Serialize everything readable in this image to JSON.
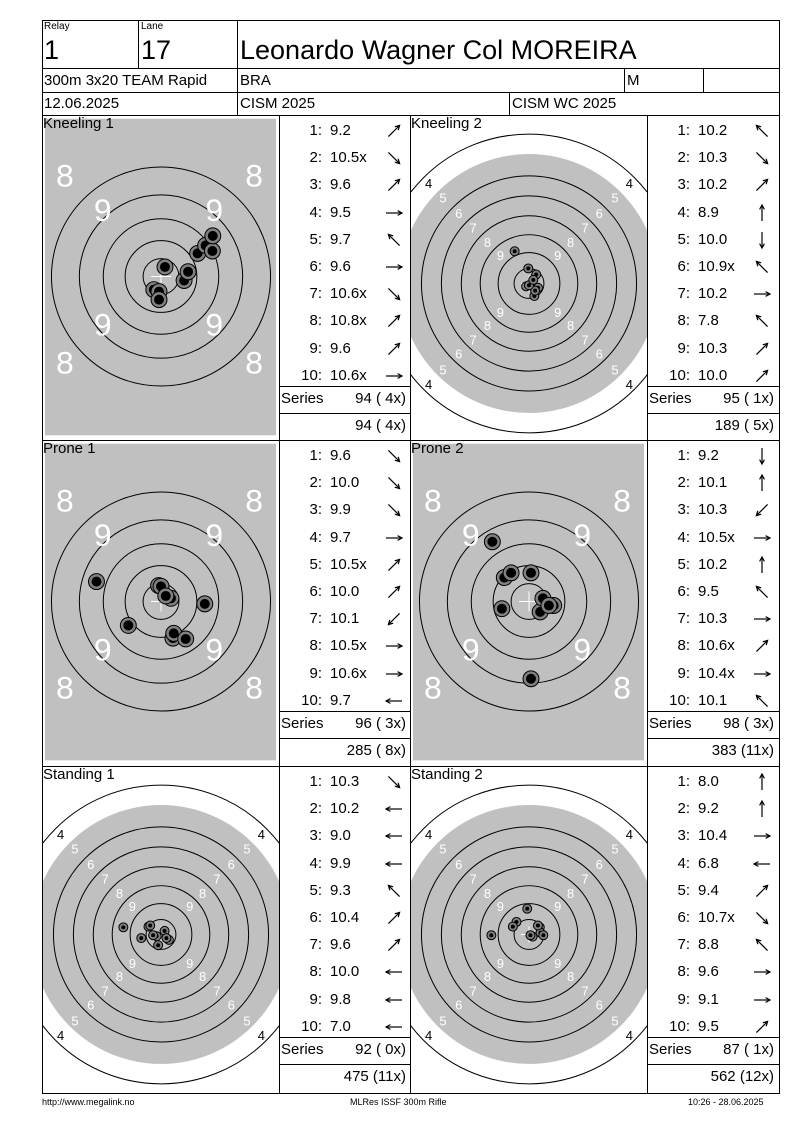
{
  "header": {
    "relay_label": "Relay",
    "relay_value": "1",
    "lane_label": "Lane",
    "lane_value": "17",
    "athlete_name": "Leonardo Wagner Col MOREIRA",
    "event": "300m 3x20 TEAM Rapid",
    "country": "BRA",
    "gender": "M",
    "date": "12.06.2025",
    "competition": "CISM 2025",
    "match": "CISM WC 2025"
  },
  "stages": [
    {
      "title": "Kneeling 1",
      "target_style": "zoom",
      "zoom_labels": [
        "8",
        "8",
        "9",
        "9",
        "9",
        "9",
        "8",
        "8"
      ],
      "shots": [
        {
          "n": "1:",
          "v": "9.2",
          "dir": "ne"
        },
        {
          "n": "2:",
          "v": "10.5x",
          "dir": "se"
        },
        {
          "n": "3:",
          "v": "9.6",
          "dir": "ne"
        },
        {
          "n": "4:",
          "v": "9.5",
          "dir": "e"
        },
        {
          "n": "5:",
          "v": "9.7",
          "dir": "nw"
        },
        {
          "n": "6:",
          "v": "9.6",
          "dir": "e"
        },
        {
          "n": "7:",
          "v": "10.6x",
          "dir": "se"
        },
        {
          "n": "8:",
          "v": "10.8x",
          "dir": "ne"
        },
        {
          "n": "9:",
          "v": "9.6",
          "dir": "ne"
        },
        {
          "n": "10:",
          "v": "10.6x",
          "dir": "e"
        }
      ],
      "series_label": "Series",
      "series_value": "94 ( 4x)",
      "total_value": "94 ( 4x)",
      "hits": [
        [
          0.58,
          -0.1
        ],
        [
          0.1,
          0.24
        ],
        [
          0.68,
          0.12
        ],
        [
          0.92,
          0.58
        ],
        [
          1.12,
          0.78
        ],
        [
          1.29,
          0.64
        ],
        [
          1.3,
          1.02
        ],
        [
          -0.18,
          -0.33
        ],
        [
          -0.05,
          -0.38
        ],
        [
          -0.05,
          -0.58
        ]
      ]
    },
    {
      "title": "Kneeling 2",
      "target_style": "full",
      "ring_labels": [
        "4",
        "5",
        "6",
        "7",
        "8",
        "9"
      ],
      "shots": [
        {
          "n": "1:",
          "v": "10.2",
          "dir": "nw"
        },
        {
          "n": "2:",
          "v": "10.3",
          "dir": "se"
        },
        {
          "n": "3:",
          "v": "10.2",
          "dir": "ne"
        },
        {
          "n": "4:",
          "v": "8.9",
          "dir": "n"
        },
        {
          "n": "5:",
          "v": "10.0",
          "dir": "s"
        },
        {
          "n": "6:",
          "v": "10.9x",
          "dir": "nw"
        },
        {
          "n": "7:",
          "v": "10.2",
          "dir": "e"
        },
        {
          "n": "8:",
          "v": "7.8",
          "dir": "nw"
        },
        {
          "n": "9:",
          "v": "10.3",
          "dir": "ne"
        },
        {
          "n": "10:",
          "v": "10.0",
          "dir": "ne"
        }
      ],
      "series_label": "Series",
      "series_value": "95 ( 1x)",
      "total_value": "189 ( 5x)",
      "hits": [
        [
          0.15,
          -0.35
        ],
        [
          -0.08,
          -0.08
        ],
        [
          0.2,
          0.25
        ],
        [
          0.05,
          -0.05
        ],
        [
          0.25,
          -0.12
        ],
        [
          -0.02,
          0.42
        ],
        [
          -0.4,
          0.9
        ],
        [
          0.17,
          -0.2
        ],
        [
          0.0,
          -0.05
        ],
        [
          0.12,
          0.1
        ]
      ]
    },
    {
      "title": "Prone 1",
      "target_style": "zoom",
      "zoom_labels": [
        "8",
        "8",
        "9",
        "9",
        "9",
        "9",
        "8",
        "8"
      ],
      "shots": [
        {
          "n": "1:",
          "v": "9.6",
          "dir": "se"
        },
        {
          "n": "2:",
          "v": "10.0",
          "dir": "se"
        },
        {
          "n": "3:",
          "v": "9.9",
          "dir": "se"
        },
        {
          "n": "4:",
          "v": "9.7",
          "dir": "e"
        },
        {
          "n": "5:",
          "v": "10.5x",
          "dir": "ne"
        },
        {
          "n": "6:",
          "v": "10.0",
          "dir": "ne"
        },
        {
          "n": "7:",
          "v": "10.1",
          "dir": "sw"
        },
        {
          "n": "8:",
          "v": "10.5x",
          "dir": "e"
        },
        {
          "n": "9:",
          "v": "10.6x",
          "dir": "e"
        },
        {
          "n": "10:",
          "v": "9.7",
          "dir": "w"
        }
      ],
      "series_label": "Series",
      "series_value": "96 ( 3x)",
      "total_value": "285 ( 8x)",
      "hits": [
        [
          0.3,
          -0.92
        ],
        [
          -0.06,
          0.4
        ],
        [
          0.0,
          0.38
        ],
        [
          0.25,
          0.08
        ],
        [
          0.12,
          0.14
        ],
        [
          1.1,
          -0.06
        ],
        [
          -1.62,
          0.5
        ],
        [
          -0.82,
          -0.6
        ],
        [
          0.32,
          -0.8
        ],
        [
          0.62,
          -0.94
        ]
      ]
    },
    {
      "title": "Prone 2",
      "target_style": "zoom",
      "zoom_labels": [
        "8",
        "8",
        "9",
        "9",
        "9",
        "9",
        "8",
        "8"
      ],
      "shots": [
        {
          "n": "1:",
          "v": "9.2",
          "dir": "s"
        },
        {
          "n": "2:",
          "v": "10.1",
          "dir": "n"
        },
        {
          "n": "3:",
          "v": "10.3",
          "dir": "sw"
        },
        {
          "n": "4:",
          "v": "10.5x",
          "dir": "e"
        },
        {
          "n": "5:",
          "v": "10.2",
          "dir": "n"
        },
        {
          "n": "6:",
          "v": "9.5",
          "dir": "nw"
        },
        {
          "n": "7:",
          "v": "10.3",
          "dir": "e"
        },
        {
          "n": "8:",
          "v": "10.6x",
          "dir": "ne"
        },
        {
          "n": "9:",
          "v": "10.4x",
          "dir": "e"
        },
        {
          "n": "10:",
          "v": "10.1",
          "dir": "nw"
        }
      ],
      "series_label": "Series",
      "series_value": "98 ( 3x)",
      "total_value": "383 (11x)",
      "hits": [
        [
          -0.92,
          1.5
        ],
        [
          0.05,
          0.72
        ],
        [
          0.28,
          -0.26
        ],
        [
          0.35,
          0.08
        ],
        [
          0.05,
          -1.94
        ],
        [
          -0.62,
          0.6
        ],
        [
          0.62,
          -0.1
        ],
        [
          0.5,
          -0.1
        ],
        [
          -0.68,
          -0.18
        ],
        [
          -0.45,
          0.72
        ]
      ]
    },
    {
      "title": "Standing 1",
      "target_style": "full",
      "ring_labels": [
        "4",
        "5",
        "6",
        "7",
        "8",
        "9"
      ],
      "shots": [
        {
          "n": "1:",
          "v": "10.3",
          "dir": "se"
        },
        {
          "n": "2:",
          "v": "10.2",
          "dir": "w"
        },
        {
          "n": "3:",
          "v": "9.0",
          "dir": "w"
        },
        {
          "n": "4:",
          "v": "9.9",
          "dir": "w"
        },
        {
          "n": "5:",
          "v": "9.3",
          "dir": "nw"
        },
        {
          "n": "6:",
          "v": "10.4",
          "dir": "ne"
        },
        {
          "n": "7:",
          "v": "9.6",
          "dir": "ne"
        },
        {
          "n": "8:",
          "v": "10.0",
          "dir": "w"
        },
        {
          "n": "9:",
          "v": "9.8",
          "dir": "w"
        },
        {
          "n": "10:",
          "v": "7.0",
          "dir": "w"
        }
      ],
      "series_label": "Series",
      "series_value": "92 ( 0x)",
      "total_value": "475 (11x)",
      "hits": [
        [
          -0.12,
          -0.05
        ],
        [
          -0.22,
          -0.02
        ],
        [
          -0.35,
          0.22
        ],
        [
          0.1,
          0.1
        ],
        [
          0.22,
          -0.15
        ],
        [
          0.15,
          -0.1
        ],
        [
          -0.3,
          0.25
        ],
        [
          -0.08,
          -0.3
        ],
        [
          -0.55,
          -0.1
        ],
        [
          -1.05,
          0.2
        ]
      ]
    },
    {
      "title": "Standing 2",
      "target_style": "full",
      "ring_labels": [
        "4",
        "5",
        "6",
        "7",
        "8",
        "9"
      ],
      "shots": [
        {
          "n": "1:",
          "v": "8.0",
          "dir": "n"
        },
        {
          "n": "2:",
          "v": "9.2",
          "dir": "n"
        },
        {
          "n": "3:",
          "v": "10.4",
          "dir": "e"
        },
        {
          "n": "4:",
          "v": "6.8",
          "dir": "w"
        },
        {
          "n": "5:",
          "v": "9.4",
          "dir": "ne"
        },
        {
          "n": "6:",
          "v": "10.7x",
          "dir": "se"
        },
        {
          "n": "7:",
          "v": "8.8",
          "dir": "nw"
        },
        {
          "n": "8:",
          "v": "9.6",
          "dir": "e"
        },
        {
          "n": "9:",
          "v": "9.1",
          "dir": "e"
        },
        {
          "n": "10:",
          "v": "9.5",
          "dir": "ne"
        }
      ],
      "series_label": "Series",
      "series_value": "87 ( 1x)",
      "total_value": "562 (12x)",
      "hits": [
        [
          -0.05,
          0.72
        ],
        [
          -0.35,
          0.35
        ],
        [
          0.1,
          -0.06
        ],
        [
          -1.05,
          -0.02
        ],
        [
          0.3,
          0.2
        ],
        [
          0.04,
          -0.02
        ],
        [
          -0.45,
          0.22
        ],
        [
          0.32,
          0.05
        ],
        [
          0.4,
          -0.02
        ],
        [
          0.25,
          0.25
        ]
      ]
    }
  ],
  "footer": {
    "left": "http://www.megalink.no",
    "center": "MLRes ISSF 300m Rifle",
    "right": "10:26 - 28.06.2025"
  }
}
